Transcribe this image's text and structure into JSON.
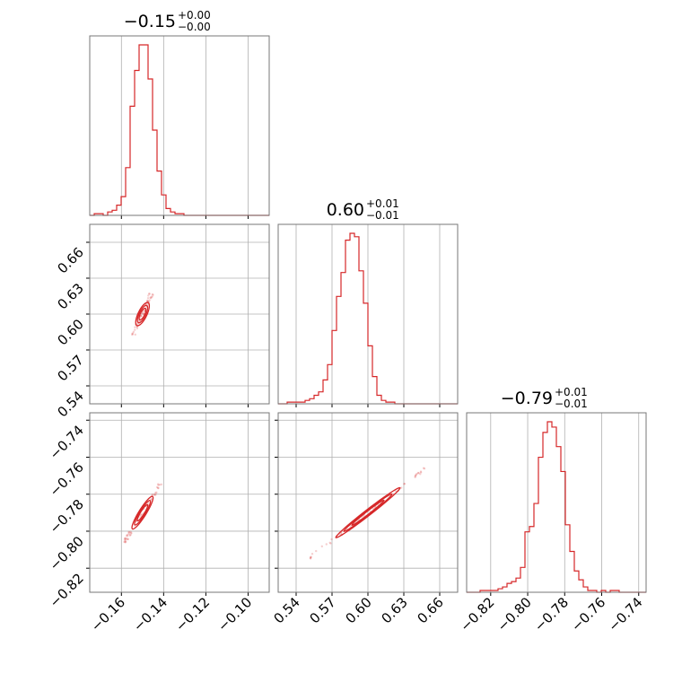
{
  "colors": {
    "accent": "#d62728",
    "grid": "#b0b0b0",
    "frame": "#777777"
  },
  "chart_data": {
    "type": "corner",
    "grid": true,
    "parameters": [
      {
        "title": {
          "value": "−0.15",
          "upper": "+0.00",
          "lower": "−0.00"
        },
        "range": [
          -0.175,
          -0.09
        ],
        "ticks": [
          -0.16,
          -0.14,
          -0.12,
          -0.1
        ],
        "tick_labels": [
          "−0.16",
          "−0.14",
          "−0.12",
          "−0.10"
        ],
        "hist_counts": [
          0,
          1,
          1,
          0,
          2,
          3,
          6,
          11,
          28,
          64,
          85,
          100,
          100,
          80,
          50,
          26,
          12,
          4,
          2,
          1,
          1,
          0,
          0,
          0,
          0,
          0,
          0,
          0,
          0,
          0,
          0,
          0,
          0,
          0,
          0,
          0,
          0,
          0,
          0,
          0
        ]
      },
      {
        "title": {
          "value": "0.60",
          "upper": "+0.01",
          "lower": "−0.01"
        },
        "range": [
          0.525,
          0.675
        ],
        "ticks": [
          0.54,
          0.57,
          0.6,
          0.63,
          0.66
        ],
        "tick_labels": [
          "0.54",
          "0.57",
          "0.60",
          "0.63",
          "0.66"
        ],
        "hist_counts": [
          0,
          0,
          1,
          1,
          1,
          1,
          2,
          3,
          5,
          7,
          14,
          23,
          43,
          63,
          77,
          96,
          100,
          98,
          78,
          59,
          34,
          16,
          5,
          2,
          1,
          1,
          0,
          0,
          0,
          0,
          0,
          0,
          0,
          0,
          0,
          0,
          0,
          0,
          0,
          0
        ]
      },
      {
        "title": {
          "value": "−0.79",
          "upper": "+0.01",
          "lower": "−0.01"
        },
        "range": [
          -0.833,
          -0.736
        ],
        "ticks": [
          -0.82,
          -0.8,
          -0.78,
          -0.76,
          -0.74
        ],
        "tick_labels": [
          "−0.82",
          "−0.80",
          "−0.78",
          "−0.76",
          "−0.74"
        ],
        "hist_counts": [
          0,
          0,
          0,
          1,
          1,
          1,
          1,
          2,
          3,
          5,
          6,
          8,
          14,
          34,
          37,
          50,
          76,
          90,
          96,
          93,
          82,
          68,
          38,
          23,
          12,
          7,
          3,
          1,
          1,
          0,
          1,
          0,
          1,
          1,
          0,
          0,
          0,
          0,
          0,
          0
        ]
      }
    ],
    "correlations": [
      {
        "x": 0,
        "y": 1,
        "center": [
          -0.15,
          0.6
        ],
        "slope": 4.0,
        "sigma_along": 0.005,
        "sigma_perp": 0.0011
      },
      {
        "x": 0,
        "y": 2,
        "center": [
          -0.15,
          -0.79
        ],
        "slope": 1.85,
        "sigma_along": 0.005,
        "sigma_perp": 0.0009
      },
      {
        "x": 1,
        "y": 2,
        "center": [
          0.6,
          -0.79
        ],
        "slope": 0.5,
        "sigma_along": 0.015,
        "sigma_perp": 0.0009
      }
    ]
  }
}
